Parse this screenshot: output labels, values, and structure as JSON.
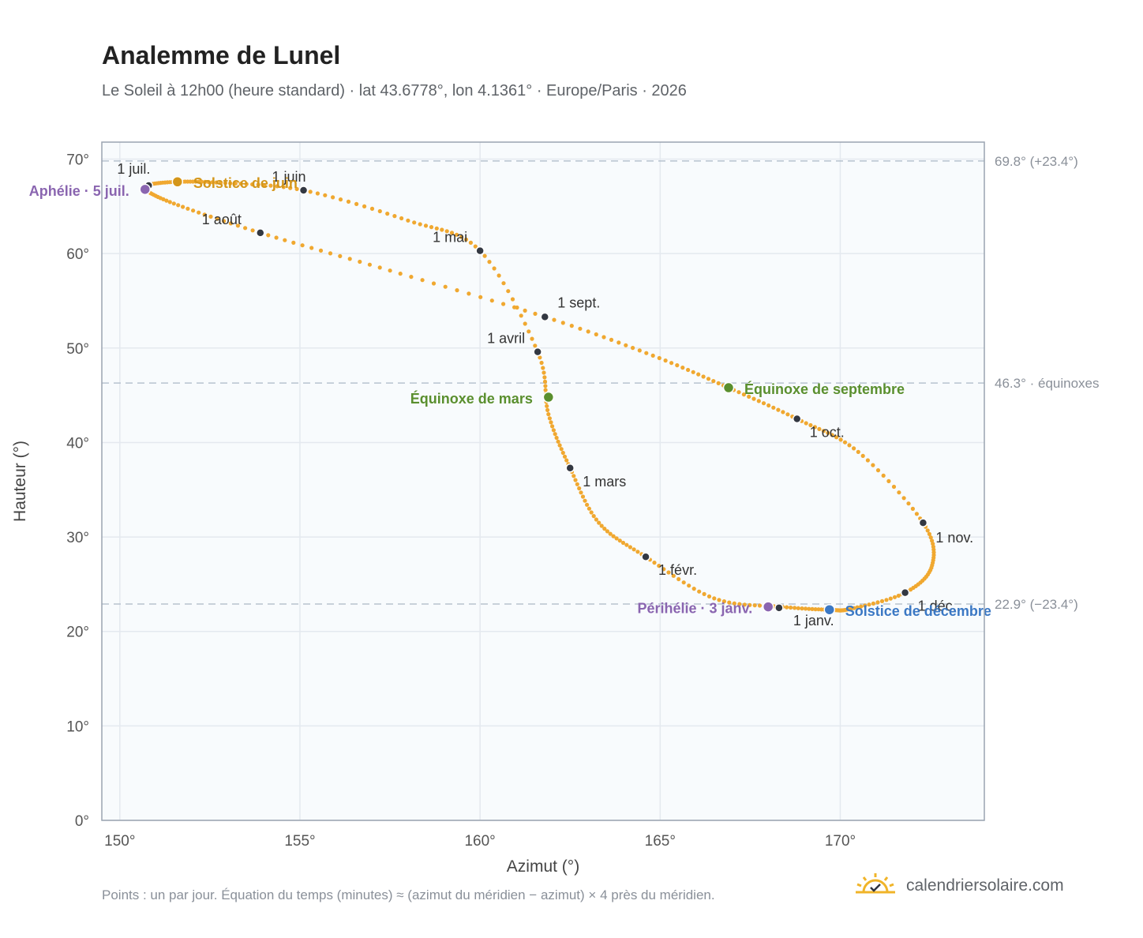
{
  "header": {
    "title": "Analemme de Lunel",
    "subtitle": "Le Soleil à 12h00 (heure standard) · lat 43.6778°, lon 4.1361° · Europe/Paris · 2026"
  },
  "footer": {
    "note": "Points : un par jour. Équation du temps (minutes) ≈ (azimut du méridien − azimut) × 4 près du méridien.",
    "brand": "calendriersolaire.com"
  },
  "colors": {
    "curve": "#f0a830",
    "month_marker": "#333842",
    "solstice_june": "#d4961a",
    "solstice_december": "#3b78c4",
    "equinox": "#5a8f2e",
    "perihelion_aphelion": "#8a65b0",
    "grid": "#e4e9ef",
    "plot_bg": "#f8fbfd",
    "reference_line": "#b7c3cf"
  },
  "chart_data": {
    "type": "scatter",
    "xlabel": "Azimut (°)",
    "ylabel": "Hauteur (°)",
    "xlim": [
      149.5,
      174
    ],
    "ylim": [
      0,
      71.8
    ],
    "x_ticks": [
      150,
      155,
      160,
      165,
      170
    ],
    "x_tick_labels": [
      "150°",
      "155°",
      "160°",
      "165°",
      "170°"
    ],
    "y_ticks": [
      0,
      10,
      20,
      30,
      40,
      50,
      60,
      70
    ],
    "y_tick_labels": [
      "0°",
      "10°",
      "20°",
      "30°",
      "40°",
      "50°",
      "60°",
      "70°"
    ],
    "grid": true,
    "series_name": "",
    "daily_path": [
      [
        168.4,
        22.6
      ],
      [
        166.5,
        23.5
      ],
      [
        164.6,
        27.9
      ],
      [
        163.3,
        31.5
      ],
      [
        162.5,
        37.3
      ],
      [
        161.9,
        43.0
      ],
      [
        161.6,
        49.6
      ],
      [
        160.0,
        60.3
      ],
      [
        158.0,
        63.5
      ],
      [
        155.1,
        66.7
      ],
      [
        152.8,
        67.5
      ],
      [
        151.6,
        67.6
      ],
      [
        150.8,
        67.3
      ],
      [
        150.7,
        66.8
      ],
      [
        151.5,
        65.3
      ],
      [
        153.9,
        62.2
      ],
      [
        157.5,
        58.2
      ],
      [
        161.8,
        53.3
      ],
      [
        164.8,
        49.2
      ],
      [
        166.9,
        45.8
      ],
      [
        168.8,
        42.5
      ],
      [
        170.5,
        39.0
      ],
      [
        172.3,
        31.5
      ],
      [
        172.55,
        27.0
      ],
      [
        171.8,
        24.1
      ],
      [
        170.3,
        22.4
      ],
      [
        169.7,
        22.3
      ],
      [
        168.4,
        22.6
      ]
    ],
    "month_markers": [
      {
        "label": "1 janv.",
        "x": 168.3,
        "y": 22.5
      },
      {
        "label": "1 févr.",
        "x": 164.6,
        "y": 27.9
      },
      {
        "label": "1 mars",
        "x": 162.5,
        "y": 37.3
      },
      {
        "label": "1 avril",
        "x": 161.6,
        "y": 49.6
      },
      {
        "label": "1 mai",
        "x": 160.0,
        "y": 60.3
      },
      {
        "label": "1 juin",
        "x": 155.1,
        "y": 66.7
      },
      {
        "label": "1 juil.",
        "x": 150.8,
        "y": 67.2
      },
      {
        "label": "1 août",
        "x": 153.9,
        "y": 62.2
      },
      {
        "label": "1 sept.",
        "x": 161.8,
        "y": 53.3
      },
      {
        "label": "1 oct.",
        "x": 168.8,
        "y": 42.5
      },
      {
        "label": "1 nov.",
        "x": 172.3,
        "y": 31.5
      },
      {
        "label": "1 déc.",
        "x": 171.8,
        "y": 24.1
      }
    ],
    "events": [
      {
        "label": "Solstice de juin",
        "x": 151.6,
        "y": 67.6,
        "color": "#d4961a"
      },
      {
        "label": "Aphélie · 5 juil.",
        "x": 150.7,
        "y": 66.8,
        "color": "#8a65b0"
      },
      {
        "label": "Équinoxe de mars",
        "x": 161.9,
        "y": 44.8,
        "color": "#5a8f2e"
      },
      {
        "label": "Équinoxe de septembre",
        "x": 166.9,
        "y": 45.8,
        "color": "#5a8f2e"
      },
      {
        "label": "Périhélie · 3 janv.",
        "x": 168.0,
        "y": 22.6,
        "color": "#8a65b0"
      },
      {
        "label": "Solstice de décembre",
        "x": 169.7,
        "y": 22.3,
        "color": "#3b78c4"
      }
    ],
    "reference_lines": [
      {
        "y": 69.8,
        "label": "69.8° (+23.4°)"
      },
      {
        "y": 46.3,
        "label": "46.3° · équinoxes"
      },
      {
        "y": 22.9,
        "label": "22.9° (−23.4°)"
      }
    ]
  }
}
